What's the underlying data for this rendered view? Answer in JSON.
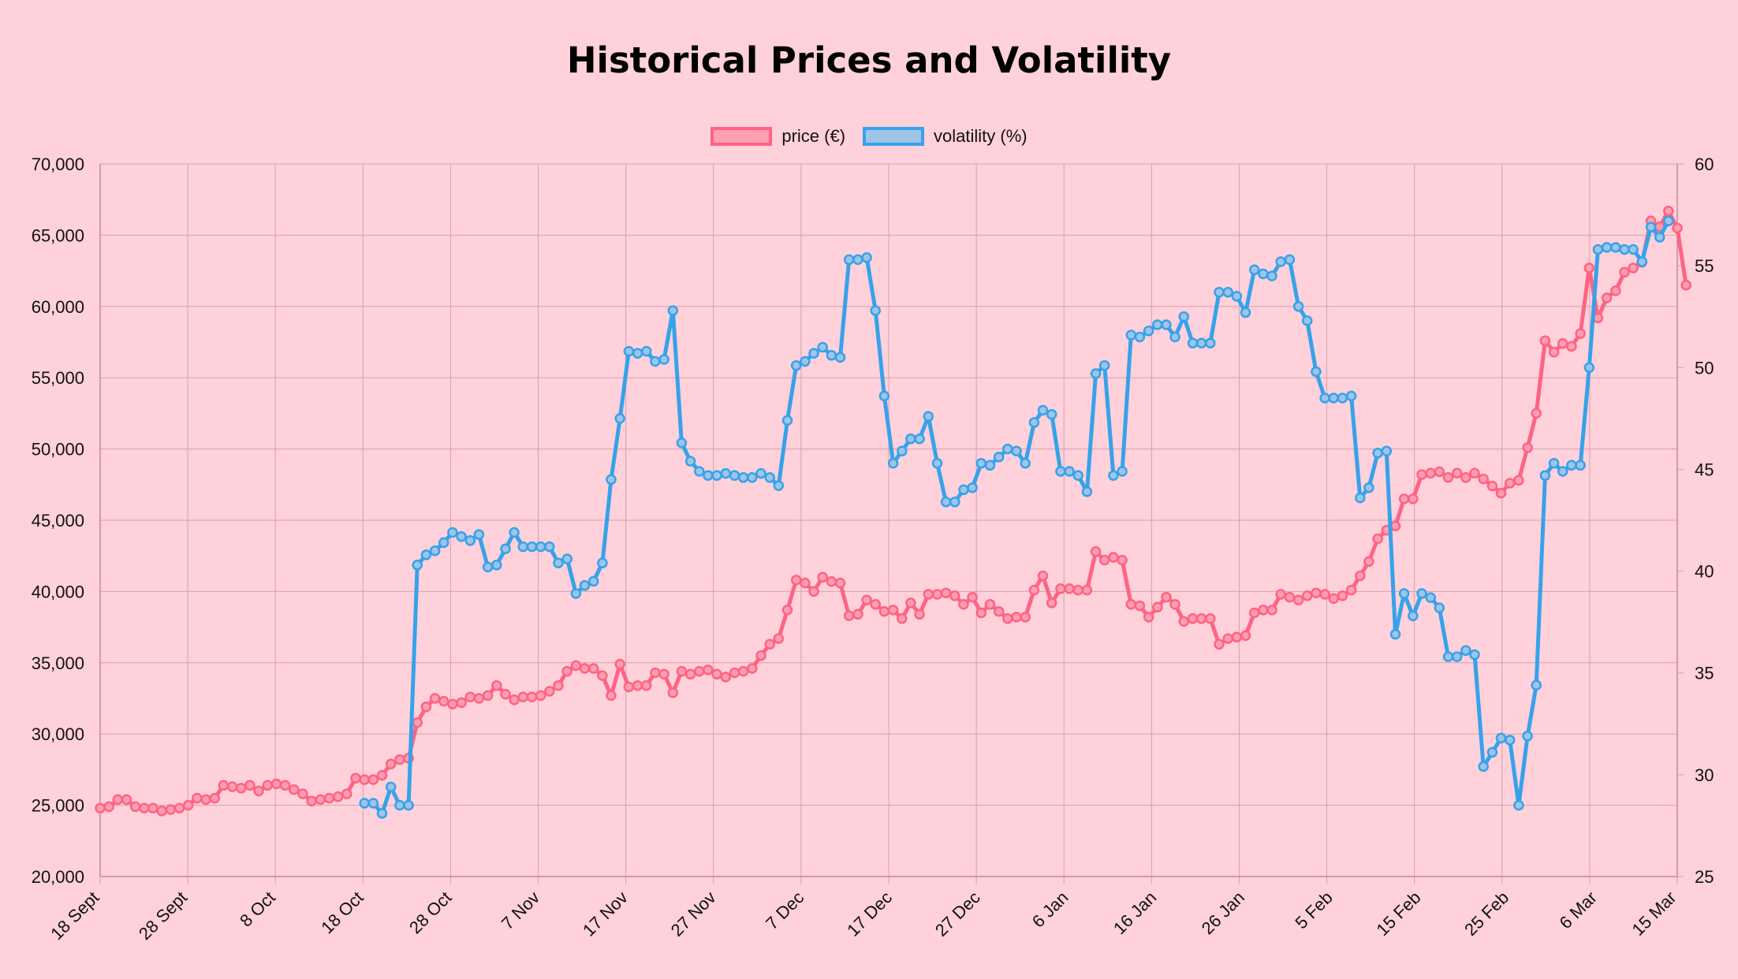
{
  "colors": {
    "background": "#ffd1da",
    "price": "#ff6384",
    "price_fill": "#ff9fb2",
    "volatility": "#36a2eb",
    "volatility_fill": "#9ec5e8",
    "grid": "#d4a2ad"
  },
  "chart_data": {
    "type": "line",
    "title": "Historical Prices and Volatility",
    "x_labels": [
      "18 Sept",
      "28 Sept",
      "8 Oct",
      "18 Oct",
      "28 Oct",
      "7 Nov",
      "17 Nov",
      "27 Nov",
      "7 Dec",
      "17 Dec",
      "27 Dec",
      "6 Jan",
      "16 Jan",
      "26 Jan",
      "5 Feb",
      "15 Feb",
      "25 Feb",
      "6 Mar",
      "15 Mar"
    ],
    "x_label_days": [
      0,
      10,
      20,
      30,
      40,
      50,
      60,
      70,
      80,
      90,
      100,
      110,
      120,
      130,
      140,
      150,
      160,
      170,
      179
    ],
    "y_left": {
      "label": "price (€)",
      "min": 20000,
      "max": 70000,
      "ticks": [
        "20,000",
        "25,000",
        "30,000",
        "35,000",
        "40,000",
        "45,000",
        "50,000",
        "55,000",
        "60,000",
        "65,000",
        "70,000"
      ]
    },
    "y_right": {
      "label": "volatility (%)",
      "min": 25,
      "max": 60,
      "ticks": [
        "25",
        "30",
        "35",
        "40",
        "45",
        "50",
        "55",
        "60"
      ]
    },
    "legend_position": "top-center",
    "grid": true,
    "series": [
      {
        "name": "price (€)",
        "axis": "left",
        "start_day": 0,
        "values": [
          24800,
          24900,
          25400,
          25400,
          24900,
          24800,
          24800,
          24600,
          24700,
          24800,
          25000,
          25500,
          25400,
          25500,
          26400,
          26300,
          26200,
          26400,
          26000,
          26400,
          26500,
          26400,
          26100,
          25800,
          25300,
          25400,
          25500,
          25600,
          25800,
          26900,
          26800,
          26800,
          27100,
          27900,
          28200,
          28300,
          30800,
          31900,
          32500,
          32300,
          32100,
          32200,
          32600,
          32500,
          32700,
          33400,
          32800,
          32400,
          32600,
          32600,
          32700,
          33000,
          33400,
          34400,
          34800,
          34600,
          34600,
          34100,
          32700,
          34900,
          33300,
          33400,
          33400,
          34300,
          34200,
          32900,
          34400,
          34200,
          34400,
          34500,
          34200,
          34000,
          34300,
          34400,
          34600,
          35500,
          36300,
          36700,
          38700,
          40800,
          40600,
          40000,
          41000,
          40700,
          40600,
          38300,
          38400,
          39400,
          39100,
          38600,
          38700,
          38100,
          39200,
          38400,
          39800,
          39800,
          39900,
          39700,
          39100,
          39600,
          38500,
          39100,
          38600,
          38100,
          38200,
          38200,
          40100,
          41100,
          39200,
          40200,
          40200,
          40100,
          40100,
          42800,
          42200,
          42400,
          42200,
          39100,
          39000,
          38200,
          38900,
          39600,
          39100,
          37900,
          38100,
          38100,
          38100,
          36300,
          36700,
          36800,
          36900,
          38500,
          38700,
          38700,
          39800,
          39600,
          39400,
          39700,
          39900,
          39800,
          39500,
          39700,
          40100,
          41100,
          42100,
          43700,
          44300,
          44600,
          46500,
          46500,
          48200,
          48300,
          48400,
          48000,
          48300,
          48000,
          48300,
          47900,
          47400,
          46900,
          47600,
          47800,
          50100,
          52500,
          57600,
          56800,
          57400,
          57200,
          58100,
          62700,
          59200,
          60600,
          61100,
          62400,
          62700,
          63100,
          66000,
          65600,
          66700,
          65500,
          61500
        ]
      },
      {
        "name": "volatility (%)",
        "axis": "right",
        "start_day": 30,
        "values": [
          28.6,
          28.6,
          28.1,
          29.4,
          28.5,
          28.5,
          40.3,
          40.8,
          41.0,
          41.4,
          41.9,
          41.7,
          41.5,
          41.8,
          40.2,
          40.3,
          41.1,
          41.9,
          41.2,
          41.2,
          41.2,
          41.2,
          40.4,
          40.6,
          38.9,
          39.3,
          39.5,
          40.4,
          44.5,
          47.5,
          50.8,
          50.7,
          50.8,
          50.3,
          50.4,
          52.8,
          46.3,
          45.4,
          44.9,
          44.7,
          44.7,
          44.8,
          44.7,
          44.6,
          44.6,
          44.8,
          44.6,
          44.2,
          47.4,
          50.1,
          50.3,
          50.7,
          51.0,
          50.6,
          50.5,
          55.3,
          55.3,
          55.4,
          52.8,
          48.6,
          45.3,
          45.9,
          46.5,
          46.5,
          47.6,
          45.3,
          43.4,
          43.4,
          44.0,
          44.1,
          45.3,
          45.2,
          45.6,
          46.0,
          45.9,
          45.3,
          47.3,
          47.9,
          47.7,
          44.9,
          44.9,
          44.7,
          43.9,
          49.7,
          50.1,
          44.7,
          44.9,
          51.6,
          51.5,
          51.8,
          52.1,
          52.1,
          51.5,
          52.5,
          51.2,
          51.2,
          51.2,
          53.7,
          53.7,
          53.5,
          52.7,
          54.8,
          54.6,
          54.5,
          55.2,
          55.3,
          53.0,
          52.3,
          49.8,
          48.5,
          48.5,
          48.5,
          48.6,
          43.6,
          44.1,
          45.8,
          45.9,
          36.9,
          38.9,
          37.8,
          38.9,
          38.7,
          38.2,
          35.8,
          35.8,
          36.1,
          35.9,
          30.4,
          31.1,
          31.8,
          31.7,
          28.5,
          31.9,
          34.4,
          44.7,
          45.3,
          44.9,
          45.2,
          45.2,
          50.0,
          55.8,
          55.9,
          55.9,
          55.8,
          55.8,
          55.2,
          56.9,
          56.4,
          57.2
        ]
      }
    ]
  }
}
